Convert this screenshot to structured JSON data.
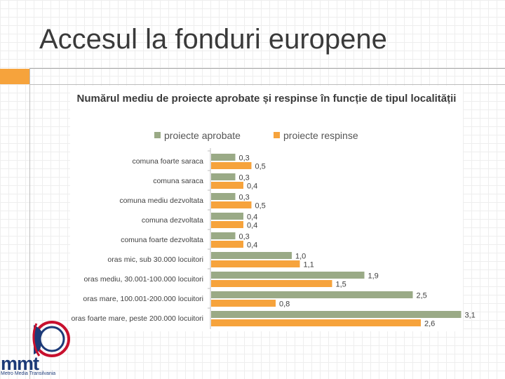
{
  "slide": {
    "title": "Accesul la fonduri europene"
  },
  "logo": {
    "text": "mmt",
    "subtitle": "Metro Media Transilvania"
  },
  "colors": {
    "approved": "#9aaa86",
    "rejected": "#f6a33c",
    "accent": "#f6a33c",
    "logo": "#1c3a78"
  },
  "chart_data": {
    "type": "bar",
    "orientation": "horizontal",
    "title": "Numărul mediu de proiecte aprobate și respinse în funcție de tipul localității",
    "legend_position": "top",
    "categories": [
      "comuna foarte saraca",
      "comuna saraca",
      "comuna mediu dezvoltata",
      "comuna dezvoltata",
      "comuna foarte dezvoltata",
      "oras mic, sub 30.000 locuitori",
      "oras mediu, 30.001-100.000 locuitori",
      "oras mare, 100.001-200.000 locuitori",
      "oras foarte mare, peste 200.000 locuitori"
    ],
    "series": [
      {
        "name": "proiecte aprobate",
        "values": [
          0.3,
          0.3,
          0.3,
          0.4,
          0.3,
          1.0,
          1.9,
          2.5,
          3.1
        ],
        "labels": [
          "0,3",
          "0,3",
          "0,3",
          "0,4",
          "0,3",
          "1,0",
          "1,9",
          "2,5",
          "3,1"
        ]
      },
      {
        "name": "proiecte respinse",
        "values": [
          0.5,
          0.4,
          0.5,
          0.4,
          0.4,
          1.1,
          1.5,
          0.8,
          2.6
        ],
        "labels": [
          "0,5",
          "0,4",
          "0,5",
          "0,4",
          "0,4",
          "1,1",
          "1,5",
          "0,8",
          "2,6"
        ]
      }
    ],
    "xlim": [
      0,
      3.2
    ],
    "grid": false
  }
}
